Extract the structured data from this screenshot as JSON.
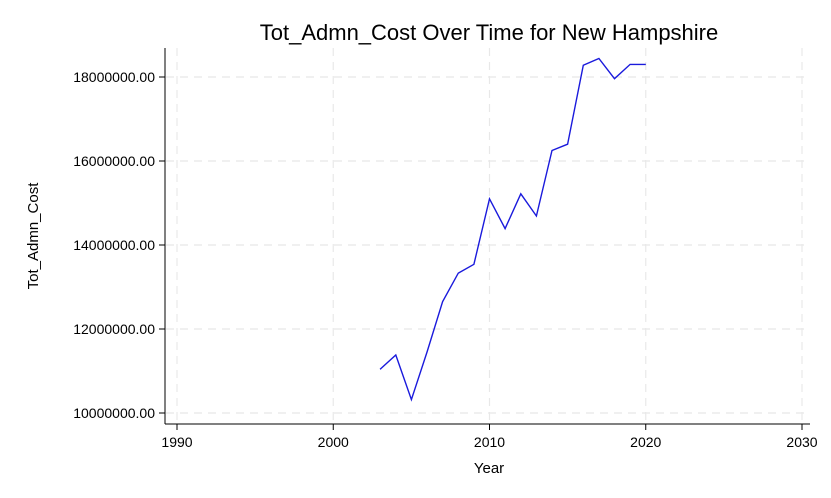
{
  "chart_data": {
    "type": "line",
    "title": "Tot_Admn_Cost Over Time for New Hampshire",
    "xlabel": "Year",
    "ylabel": "Tot_Admn_Cost",
    "xlim": [
      1990,
      2030
    ],
    "ylim": [
      10000000,
      18000000
    ],
    "x_ticks": [
      1990,
      2000,
      2010,
      2020,
      2030
    ],
    "x_tick_labels": [
      "1990",
      "2000",
      "2010",
      "2020",
      "2030"
    ],
    "y_ticks": [
      10000000,
      12000000,
      14000000,
      16000000,
      18000000
    ],
    "y_tick_labels": [
      "10000000.00",
      "12000000.00",
      "14000000.00",
      "16000000.00",
      "18000000.00"
    ],
    "grid": true,
    "line_color": "#1a1adc",
    "series": [
      {
        "x": [
          2003,
          2004,
          2005,
          2006,
          2007,
          2008,
          2009,
          2010,
          2011,
          2012,
          2013,
          2014,
          2015,
          2016,
          2017,
          2018,
          2019,
          2020
        ],
        "values": [
          11040000,
          11380000,
          10320000,
          11450000,
          12650000,
          13330000,
          13540000,
          15100000,
          14390000,
          15220000,
          14690000,
          16250000,
          16400000,
          18280000,
          18440000,
          17960000,
          18300000,
          18300000
        ]
      }
    ]
  }
}
